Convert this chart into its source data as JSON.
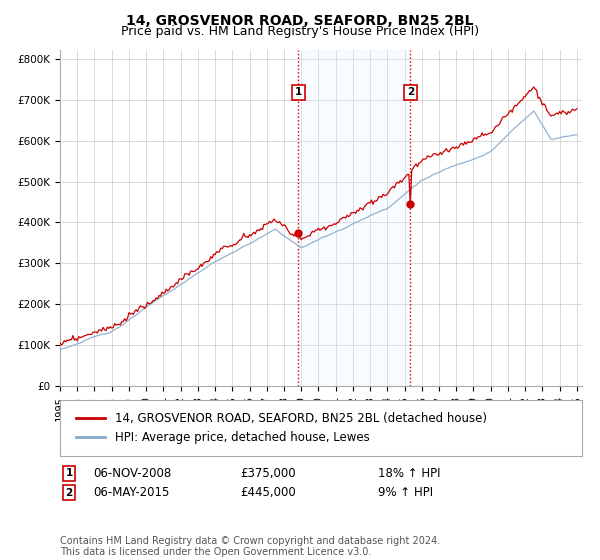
{
  "title": "14, GROSVENOR ROAD, SEAFORD, BN25 2BL",
  "subtitle": "Price paid vs. HM Land Registry's House Price Index (HPI)",
  "ylim": [
    0,
    820000
  ],
  "yticks": [
    0,
    100000,
    200000,
    300000,
    400000,
    500000,
    600000,
    700000,
    800000
  ],
  "ytick_labels": [
    "£0",
    "£100K",
    "£200K",
    "£300K",
    "£400K",
    "£500K",
    "£600K",
    "£700K",
    "£800K"
  ],
  "t1_year": 2008.833,
  "t1_price": 375000,
  "t1_label": "06-NOV-2008",
  "t1_hpi_text": "18% ↑ HPI",
  "t2_year": 2015.333,
  "t2_price": 445000,
  "t2_label": "06-MAY-2015",
  "t2_hpi_text": "9% ↑ HPI",
  "line_color_property": "#cc0000",
  "line_color_hpi": "#88aacc",
  "shade_color": "#ddeeff",
  "vline_color": "#cc0000",
  "legend_property": "14, GROSVENOR ROAD, SEAFORD, BN25 2BL (detached house)",
  "legend_hpi": "HPI: Average price, detached house, Lewes",
  "footer": "Contains HM Land Registry data © Crown copyright and database right 2024.\nThis data is licensed under the Open Government Licence v3.0.",
  "background_color": "#ffffff",
  "grid_color": "#cccccc",
  "title_fontsize": 10,
  "subtitle_fontsize": 9,
  "tick_fontsize": 7.5,
  "legend_fontsize": 8.5,
  "footer_fontsize": 7
}
